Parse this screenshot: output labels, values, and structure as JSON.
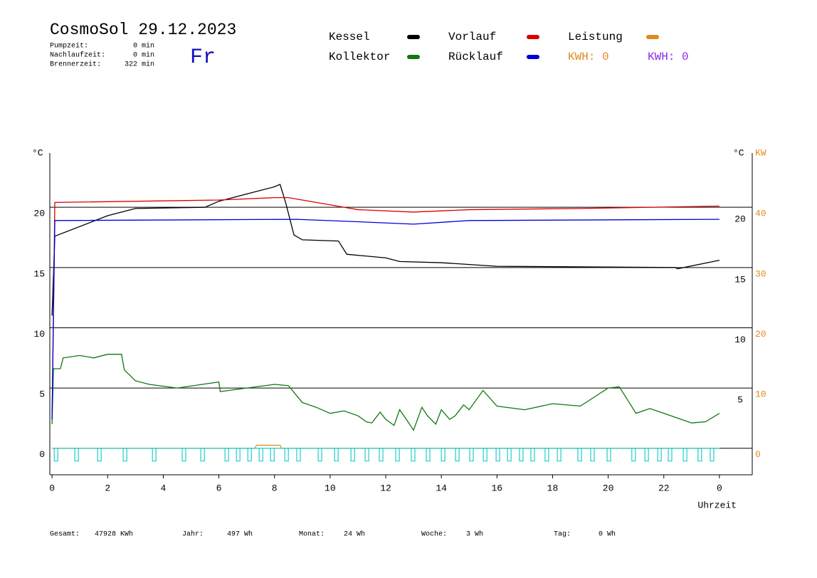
{
  "header": {
    "title": "CosmoSol 29.12.2023",
    "day": "Fr",
    "info": [
      {
        "label": "Pumpzeit:",
        "value": "0 min"
      },
      {
        "label": "Nachlaufzeit:",
        "value": "0 min"
      },
      {
        "label": "Brennerzeit:",
        "value": "322 min"
      }
    ],
    "kwh": [
      {
        "text": "KWH: 0",
        "color": "#e08a1e"
      },
      {
        "text": "KWH: 0",
        "color": "#8a2be2"
      }
    ]
  },
  "footer": [
    {
      "label": "Gesamt:",
      "value": "47928 KWh"
    },
    {
      "label": "Jahr:",
      "value": "497 Wh"
    },
    {
      "label": "Monat:",
      "value": "24 Wh"
    },
    {
      "label": "Woche:",
      "value": "3 Wh"
    },
    {
      "label": "Tag:",
      "value": "0 Wh"
    }
  ],
  "chart_data": {
    "type": "line",
    "xlabel": "Uhrzeit",
    "ylabel": "°C",
    "ylabel_right": "°C",
    "y2label": "KW",
    "xlim": [
      -0.08,
      25.18
    ],
    "xticks": [
      0,
      2,
      4,
      6,
      8,
      10,
      12,
      14,
      16,
      18,
      20,
      22,
      {
        "value": 24,
        "label": "0"
      }
    ],
    "ylim": [
      -2.2,
      24.5
    ],
    "yticks": [
      0,
      5,
      10,
      15,
      20
    ],
    "yticks_right": [
      5,
      10,
      15,
      20
    ],
    "y2lim": [
      -4.4,
      49
    ],
    "y2ticks": [
      0,
      10,
      20,
      30,
      40
    ],
    "grid": true,
    "series": [
      {
        "name": "Kessel",
        "color": "#000000",
        "x": [
          0,
          0.1,
          2,
          3,
          5.5,
          6,
          7,
          8,
          8.2,
          8.4,
          8.7,
          9,
          10.3,
          10.6,
          12,
          12.5,
          14,
          16,
          22.4,
          22.5,
          24
        ],
        "values": [
          11,
          17.6,
          19.3,
          19.9,
          20,
          20.5,
          21.1,
          21.7,
          21.9,
          20.4,
          17.7,
          17.3,
          17.2,
          16.1,
          15.8,
          15.5,
          15.4,
          15.1,
          15,
          14.9,
          15.6
        ]
      },
      {
        "name": "Vorlauf",
        "color": "#dd0000",
        "x": [
          0,
          0.1,
          6,
          8,
          8.5,
          10,
          11,
          13,
          15,
          19,
          24
        ],
        "values": [
          2.4,
          20.4,
          20.6,
          20.8,
          20.8,
          20.2,
          19.8,
          19.6,
          19.8,
          19.9,
          20.1
        ]
      },
      {
        "name": "Leistung",
        "color": "#e08a1e",
        "axis": "y2",
        "x": [
          0,
          7.3,
          7.35,
          8.2,
          8.25,
          24
        ],
        "values": [
          0,
          0,
          0.5,
          0.5,
          0,
          0
        ]
      },
      {
        "name": "Kollektor",
        "color": "#117711",
        "x": [
          0,
          0.05,
          0.3,
          0.4,
          1,
          1.5,
          2,
          2.5,
          2.6,
          3,
          3.5,
          4.5,
          6,
          6.05,
          7,
          8,
          8.5,
          9,
          9.5,
          10,
          10.5,
          11,
          11.3,
          11.5,
          11.8,
          12,
          12.3,
          12.5,
          12.8,
          13,
          13.3,
          13.5,
          13.8,
          14,
          14.3,
          14.5,
          14.8,
          15,
          15.5,
          16,
          17,
          18,
          19,
          20,
          20.4,
          21,
          21.5,
          22,
          23,
          23.5,
          24
        ],
        "values": [
          2,
          6.6,
          6.6,
          7.5,
          7.7,
          7.5,
          7.8,
          7.8,
          6.5,
          5.6,
          5.3,
          5,
          5.5,
          4.7,
          5,
          5.3,
          5.2,
          3.8,
          3.4,
          2.9,
          3.1,
          2.7,
          2.2,
          2.1,
          3,
          2.4,
          1.9,
          3.2,
          2.2,
          1.5,
          3.4,
          2.7,
          2,
          3.2,
          2.4,
          2.7,
          3.6,
          3.2,
          4.8,
          3.5,
          3.2,
          3.7,
          3.5,
          5,
          5.1,
          2.9,
          3.3,
          2.9,
          2.1,
          2.2,
          2.9
        ]
      },
      {
        "name": "Rücklauf",
        "color": "#0000dd",
        "x": [
          0,
          0.1,
          8.8,
          11,
          13,
          15,
          24
        ],
        "values": [
          2.4,
          18.9,
          19,
          18.8,
          18.6,
          18.9,
          19
        ]
      },
      {
        "color": "#22cccc",
        "type": "pulse",
        "x": [
          0.08,
          0.82,
          1.64,
          2.56,
          3.61,
          4.68,
          5.35,
          6.22,
          6.63,
          7.04,
          7.45,
          7.86,
          8.37,
          8.8,
          9.57,
          10.16,
          10.75,
          11.26,
          11.77,
          12.36,
          12.92,
          13.46,
          14,
          14.51,
          15.02,
          15.51,
          15.97,
          16.38,
          16.81,
          17.22,
          17.73,
          18.17,
          18.91,
          19.37,
          19.96,
          20.85,
          21.32,
          21.78,
          22.16,
          22.7,
          23.23,
          23.67
        ],
        "values": [
          -1.06,
          -1.06,
          -1.06,
          -1.06,
          -1.06,
          -1.06,
          -1.06,
          -1.06,
          -1.06,
          -1.06,
          -1.06,
          -1.06,
          -1.06,
          -1.06,
          -1.06,
          -1.06,
          -1.06,
          -1.06,
          -1.06,
          -1.06,
          -1.06,
          -1.06,
          -1.06,
          -1.06,
          -1.06,
          -1.06,
          -1.06,
          -1.06,
          -1.06,
          -1.06,
          -1.06,
          -1.06,
          -1.06,
          -1.06,
          -1.06,
          -1.06,
          -1.06,
          -1.06,
          -1.06,
          -1.06,
          -1.06,
          -1.06
        ]
      }
    ]
  }
}
